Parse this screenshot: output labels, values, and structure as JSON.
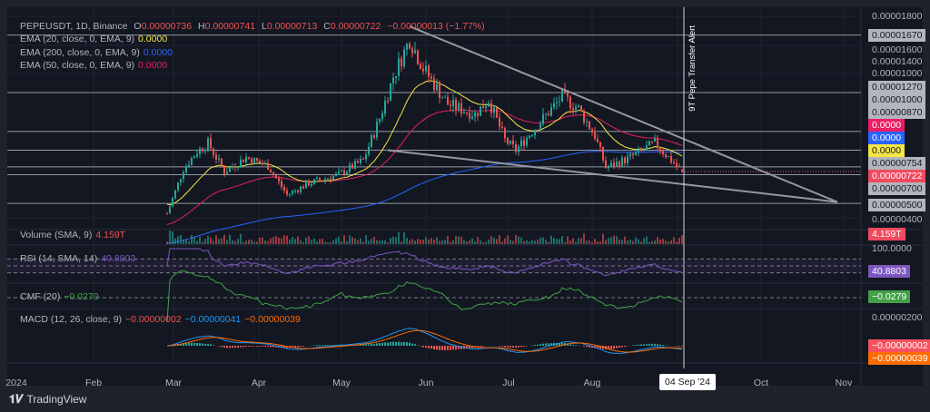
{
  "header": {
    "symbol": "PEPEUSDT, 1D, Binance",
    "open_label": "O",
    "open": "0.00000736",
    "high_label": "H",
    "high": "0.00000741",
    "low_label": "L",
    "low": "0.00000713",
    "close_label": "C",
    "close": "0.00000722",
    "change": "−0.00000013 (−1.77%)"
  },
  "indicators": {
    "ema20": {
      "label": "EMA (20, close, 0, EMA, 9)",
      "value": "0.0000",
      "color": "#f5e642"
    },
    "ema200": {
      "label": "EMA (200, close, 0, EMA, 9)",
      "value": "0.0000",
      "color": "#2962ff"
    },
    "ema50": {
      "label": "EMA (50, close, 0, EMA, 9)",
      "value": "0.0000",
      "color": "#e91e63"
    },
    "volume": {
      "label": "Volume (SMA, 9)",
      "value": "4.159T"
    },
    "rsi": {
      "label": "RSI (14, SMA, 14)",
      "value": "40.8803",
      "color": "#7e57c2"
    },
    "cmf": {
      "label": "CMF (20)",
      "value": "−0.0279",
      "color": "#43a047"
    },
    "macd": {
      "label": "MACD (12, 26, close, 9)",
      "hist": "−0.00000002",
      "macd": "−0.00000041",
      "signal": "−0.00000039",
      "macd_color": "#2196f3",
      "signal_color": "#ff6d00"
    }
  },
  "price_axis": {
    "ticks": [
      "0.00001800",
      "0.00001600",
      "0.00001400",
      "0.00001000",
      "0.00000400"
    ],
    "level_labels": [
      "0.00001670",
      "0.00001270",
      "0.00001000",
      "0.00000870",
      "0.00000754",
      "0.00000700",
      "0.00000500"
    ],
    "ema_tags": [
      "0.0000",
      "0.0000",
      "0.0000"
    ],
    "last_price": "0.00000722",
    "rsi_tick": "100.0000",
    "macd_tick": "0.00000200"
  },
  "time_axis": {
    "months": [
      "2024",
      "Feb",
      "Mar",
      "Apr",
      "May",
      "Jun",
      "Jul",
      "Aug",
      "Oct",
      "Nov"
    ],
    "crosshair_date": "04 Sep '24"
  },
  "annotation": "9T Pepe Transfer Alert",
  "footer": {
    "brand": "TradingView"
  },
  "colors": {
    "up": "#26a69a",
    "down": "#ef5350",
    "background": "#131722"
  },
  "chart_data": {
    "type": "candlestick",
    "price_unit": "1e-6 USDT",
    "price_path": [
      [
        "2024-02-28",
        4.3
      ],
      [
        "2024-03-05",
        7.4
      ],
      [
        "2024-03-10",
        8.6
      ],
      [
        "2024-03-14",
        9.2
      ],
      [
        "2024-03-20",
        7.2
      ],
      [
        "2024-03-28",
        8.2
      ],
      [
        "2024-04-05",
        7.6
      ],
      [
        "2024-04-12",
        5.6
      ],
      [
        "2024-04-20",
        6.4
      ],
      [
        "2024-05-01",
        7.0
      ],
      [
        "2024-05-10",
        8.0
      ],
      [
        "2024-05-16",
        10.9
      ],
      [
        "2024-05-21",
        13.8
      ],
      [
        "2024-05-27",
        16.4
      ],
      [
        "2024-06-01",
        14.4
      ],
      [
        "2024-06-10",
        11.9
      ],
      [
        "2024-06-20",
        11.2
      ],
      [
        "2024-06-25",
        12.2
      ],
      [
        "2024-07-01",
        9.4
      ],
      [
        "2024-07-05",
        8.7
      ],
      [
        "2024-07-15",
        10.9
      ],
      [
        "2024-07-22",
        12.4
      ],
      [
        "2024-07-28",
        11.6
      ],
      [
        "2024-08-03",
        9.7
      ],
      [
        "2024-08-07",
        7.5
      ],
      [
        "2024-08-15",
        8.1
      ],
      [
        "2024-08-25",
        9.2
      ],
      [
        "2024-09-01",
        7.8
      ],
      [
        "2024-09-04",
        7.22
      ]
    ],
    "horizontal_levels": [
      16.7,
      12.7,
      10.0,
      8.7,
      7.54,
      7.0,
      5.0
    ],
    "trendlines": [
      [
        [
          "2024-05-27",
          17.3
        ],
        [
          "2024-10-31",
          5.1
        ]
      ],
      [
        [
          "2024-05-19",
          8.7
        ],
        [
          "2024-10-31",
          5.1
        ]
      ]
    ],
    "ylim": [
      3.6,
      18.2
    ]
  }
}
